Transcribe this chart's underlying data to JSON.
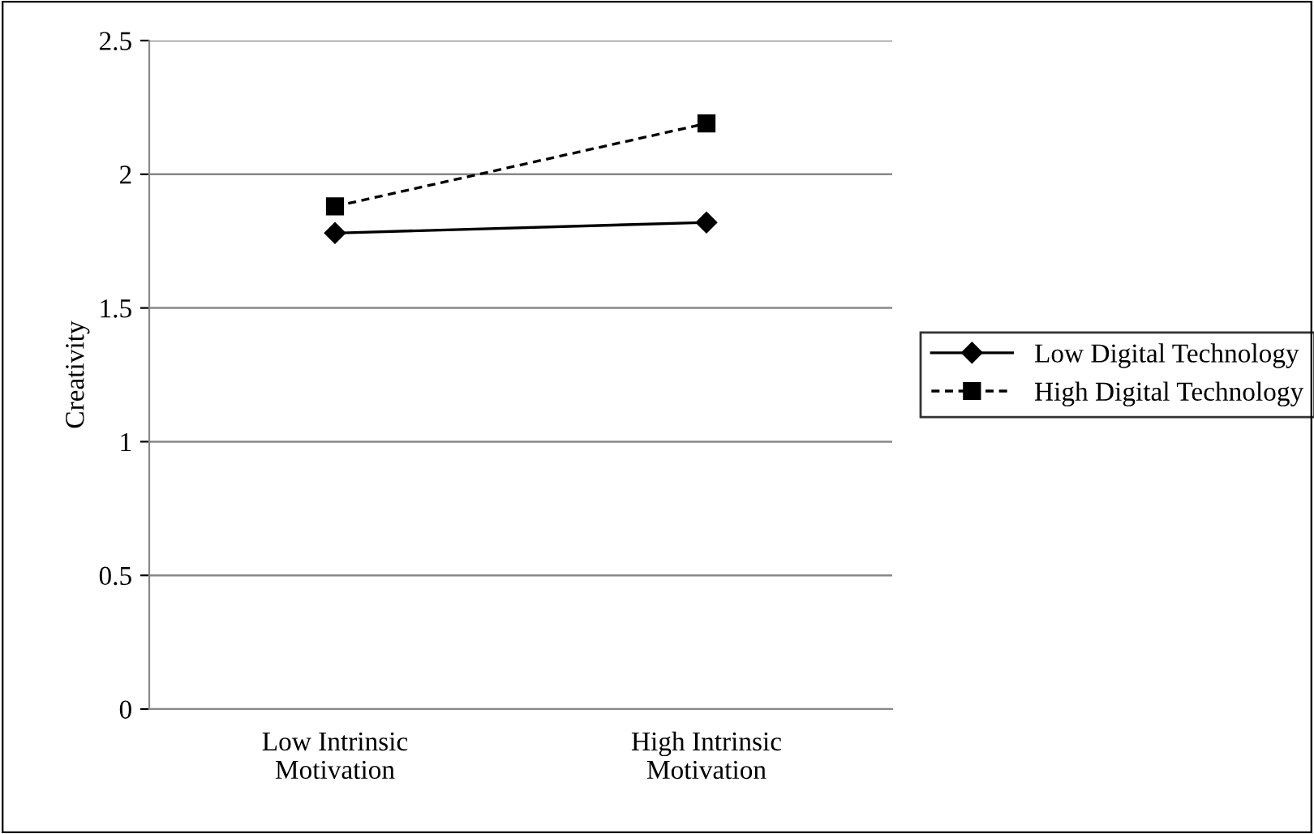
{
  "chart_data": {
    "type": "line",
    "ylabel": "Creativity",
    "categories": [
      "Low Intrinsic\nMotivation",
      "High Intrinsic\nMotivation"
    ],
    "series": [
      {
        "name": "Low Digital Technology",
        "color": "#000000",
        "values": [
          1.78,
          1.82
        ],
        "marker": "diamond",
        "line_style": "solid"
      },
      {
        "name": "High Digital Technology",
        "color": "#000000",
        "values": [
          1.88,
          2.19
        ],
        "marker": "square",
        "line_style": "dashed"
      }
    ],
    "ylim": [
      0,
      2.5
    ],
    "yticks": [
      0,
      0.5,
      1,
      1.5,
      2,
      2.5
    ],
    "grid": "y",
    "legend": "right"
  }
}
